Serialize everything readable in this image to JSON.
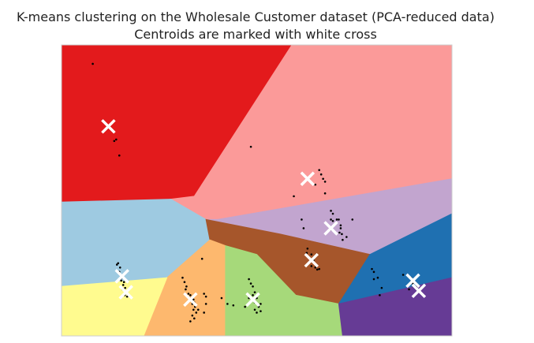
{
  "chart_data": {
    "type": "scatter",
    "title": "K-means clustering on the Wholesale Customer dataset (PCA-reduced data)",
    "subtitle": "Centroids are marked with white cross",
    "xlabel": "",
    "ylabel": "",
    "grid": false,
    "xlim": [
      0,
      100
    ],
    "ylim": [
      0,
      100
    ],
    "regions": [
      {
        "color": "#e31a1c",
        "polygon": [
          [
            0,
            0
          ],
          [
            59,
            0
          ],
          [
            34,
            52
          ],
          [
            28,
            53
          ],
          [
            0,
            54
          ]
        ]
      },
      {
        "color": "#fb9a99",
        "polygon": [
          [
            59,
            0
          ],
          [
            100,
            0
          ],
          [
            100,
            46
          ],
          [
            40,
            60
          ],
          [
            37,
            60
          ],
          [
            28,
            53
          ],
          [
            34,
            52
          ]
        ]
      },
      {
        "color": "#c2a5cf",
        "polygon": [
          [
            40,
            60
          ],
          [
            100,
            46
          ],
          [
            100,
            58
          ],
          [
            79,
            72
          ],
          [
            56,
            65
          ],
          [
            37,
            60
          ]
        ]
      },
      {
        "color": "#9ecae1",
        "polygon": [
          [
            0,
            54
          ],
          [
            28,
            53
          ],
          [
            37,
            60
          ],
          [
            38,
            67
          ],
          [
            27,
            80
          ],
          [
            0,
            83
          ]
        ]
      },
      {
        "color": "#a6562b",
        "polygon": [
          [
            37,
            60
          ],
          [
            56,
            65
          ],
          [
            79,
            72
          ],
          [
            71,
            89
          ],
          [
            60,
            86
          ],
          [
            50,
            72
          ],
          [
            42,
            69
          ],
          [
            38,
            67
          ]
        ]
      },
      {
        "color": "#1f70b1",
        "polygon": [
          [
            79,
            72
          ],
          [
            100,
            58
          ],
          [
            100,
            80
          ],
          [
            71,
            89
          ]
        ]
      },
      {
        "color": "#fdb86e",
        "polygon": [
          [
            38,
            67
          ],
          [
            42,
            69
          ],
          [
            42,
            100
          ],
          [
            21,
            100
          ],
          [
            27,
            80
          ]
        ]
      },
      {
        "color": "#a6d97a",
        "polygon": [
          [
            42,
            69
          ],
          [
            50,
            72
          ],
          [
            60,
            86
          ],
          [
            71,
            89
          ],
          [
            72,
            100
          ],
          [
            42,
            100
          ]
        ]
      },
      {
        "color": "#fffb8f",
        "polygon": [
          [
            0,
            83
          ],
          [
            27,
            80
          ],
          [
            21,
            100
          ],
          [
            0,
            100
          ]
        ]
      },
      {
        "color": "#663b95",
        "polygon": [
          [
            71,
            89
          ],
          [
            100,
            80
          ],
          [
            100,
            100
          ],
          [
            72,
            100
          ]
        ]
      }
    ],
    "centroids": [
      {
        "x": 12,
        "y": 28
      },
      {
        "x": 63,
        "y": 46
      },
      {
        "x": 69,
        "y": 63
      },
      {
        "x": 64,
        "y": 74
      },
      {
        "x": 15.5,
        "y": 79.5
      },
      {
        "x": 16.5,
        "y": 85
      },
      {
        "x": 33,
        "y": 87.5
      },
      {
        "x": 49,
        "y": 87.5
      },
      {
        "x": 90,
        "y": 81
      },
      {
        "x": 91.5,
        "y": 84.5
      }
    ],
    "points": [
      [
        8,
        6.5
      ],
      [
        13.5,
        33
      ],
      [
        14,
        32.5
      ],
      [
        14.8,
        38
      ],
      [
        48.5,
        35
      ],
      [
        66,
        43
      ],
      [
        66.5,
        44.5
      ],
      [
        67,
        46
      ],
      [
        67.5,
        47
      ],
      [
        65,
        48
      ],
      [
        67.5,
        51
      ],
      [
        59.5,
        52
      ],
      [
        69,
        57
      ],
      [
        69.5,
        58
      ],
      [
        69,
        60
      ],
      [
        69.5,
        60.5
      ],
      [
        70.5,
        60
      ],
      [
        71,
        60
      ],
      [
        71.5,
        62
      ],
      [
        71.5,
        63
      ],
      [
        71.8,
        65
      ],
      [
        72,
        67
      ],
      [
        73,
        66
      ],
      [
        69.2,
        63.5
      ],
      [
        71.2,
        64.5
      ],
      [
        61.5,
        60
      ],
      [
        62,
        63
      ],
      [
        74.5,
        60
      ],
      [
        63,
        70
      ],
      [
        62.8,
        71.5
      ],
      [
        64,
        72
      ],
      [
        64.5,
        74
      ],
      [
        65,
        76.5
      ],
      [
        64,
        76
      ],
      [
        66,
        77
      ],
      [
        65.5,
        77.2
      ],
      [
        14.5,
        75
      ],
      [
        14.2,
        75.5
      ],
      [
        15,
        76.5
      ],
      [
        14.8,
        78
      ],
      [
        15.5,
        80
      ],
      [
        15.3,
        81
      ],
      [
        16,
        81.5
      ],
      [
        15.8,
        82.5
      ],
      [
        16.3,
        83.5
      ],
      [
        15.6,
        84
      ],
      [
        16.6,
        85
      ],
      [
        16.2,
        86
      ],
      [
        16.8,
        86.5
      ],
      [
        15,
        80.5
      ],
      [
        16.5,
        80.8
      ],
      [
        31,
        80
      ],
      [
        31.5,
        81.5
      ],
      [
        32,
        83
      ],
      [
        31.8,
        84
      ],
      [
        32.5,
        85.5
      ],
      [
        33,
        86
      ],
      [
        33.2,
        87
      ],
      [
        33.8,
        87.5
      ],
      [
        34,
        88.5
      ],
      [
        33.5,
        89
      ],
      [
        34.2,
        90
      ],
      [
        33.8,
        91
      ],
      [
        34.5,
        92
      ],
      [
        33.5,
        93
      ],
      [
        34,
        94
      ],
      [
        33,
        95
      ],
      [
        35,
        91
      ],
      [
        36.5,
        85.5
      ],
      [
        37,
        86.5
      ],
      [
        41,
        87
      ],
      [
        42.5,
        89
      ],
      [
        44,
        89.5
      ],
      [
        37,
        89
      ],
      [
        36.5,
        92
      ],
      [
        48,
        80.5
      ],
      [
        48.5,
        82
      ],
      [
        49,
        83
      ],
      [
        49.5,
        85
      ],
      [
        49,
        86
      ],
      [
        50,
        87
      ],
      [
        49.5,
        88.5
      ],
      [
        50,
        89
      ],
      [
        50.5,
        90
      ],
      [
        51,
        91.5
      ],
      [
        49.5,
        91
      ],
      [
        50,
        92
      ],
      [
        47,
        90
      ],
      [
        48,
        87
      ],
      [
        51,
        89
      ],
      [
        36,
        73.5
      ],
      [
        79.5,
        77
      ],
      [
        80,
        78
      ],
      [
        81,
        80
      ],
      [
        80,
        80.5
      ],
      [
        82,
        83.5
      ],
      [
        81.5,
        86
      ],
      [
        89.5,
        80
      ],
      [
        90,
        82
      ],
      [
        90.5,
        81.5
      ],
      [
        91,
        83
      ],
      [
        89,
        84
      ],
      [
        87.5,
        79
      ]
    ]
  }
}
